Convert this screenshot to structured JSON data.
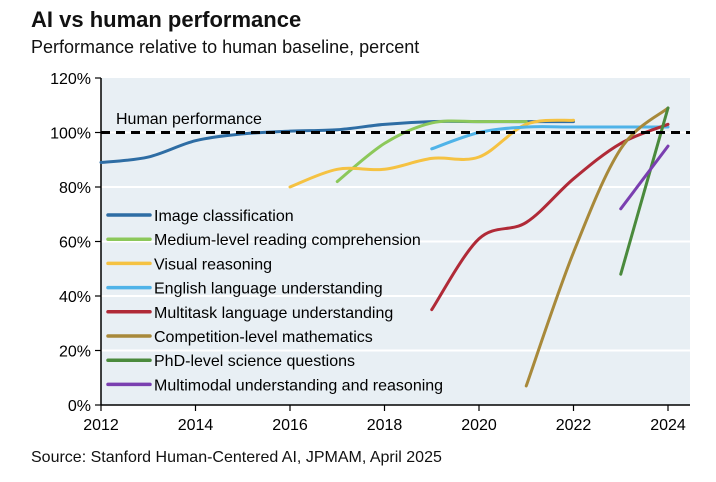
{
  "chart_data": {
    "type": "line",
    "title": "AI vs human performance",
    "subtitle": "Performance relative to human baseline, percent",
    "source": "Source: Stanford Human-Centered AI, JPMAM, April 2025",
    "xlim": [
      2012,
      2024
    ],
    "ylim": [
      0,
      120
    ],
    "x_ticks": [
      "2012",
      "2014",
      "2016",
      "2018",
      "2020",
      "2022",
      "2024"
    ],
    "y_ticks": [
      "0%",
      "20%",
      "40%",
      "60%",
      "80%",
      "100%",
      "120%"
    ],
    "grid": "horizontal",
    "legend_position": "left-center",
    "reference_line": {
      "label": "Human performance",
      "value": 100,
      "color": "#000000"
    },
    "background": "#e8eff4",
    "series": [
      {
        "name": "Image classification",
        "color": "#2e6da4",
        "x": [
          2012,
          2013,
          2014,
          2015,
          2016,
          2017,
          2018,
          2019,
          2020,
          2021,
          2022
        ],
        "values": [
          89,
          91,
          97,
          99.5,
          100.5,
          101,
          103,
          104,
          104,
          104,
          104
        ]
      },
      {
        "name": "Medium-level reading comprehension",
        "color": "#8cc85a",
        "x": [
          2017,
          2018,
          2019,
          2020,
          2021
        ],
        "values": [
          82,
          96,
          103.5,
          104,
          104
        ]
      },
      {
        "name": "Visual reasoning",
        "color": "#f5c242",
        "x": [
          2016,
          2017,
          2018,
          2019,
          2020,
          2021,
          2022
        ],
        "values": [
          80,
          86.5,
          86.5,
          90.5,
          91,
          103,
          104.5
        ]
      },
      {
        "name": "English language understanding",
        "color": "#4fb3e8",
        "x": [
          2019,
          2020,
          2021,
          2022,
          2023,
          2024
        ],
        "values": [
          94,
          100,
          102,
          102,
          102,
          102
        ]
      },
      {
        "name": "Multitask language understanding",
        "color": "#b02a37",
        "x": [
          2019,
          2020,
          2021,
          2022,
          2023,
          2024
        ],
        "values": [
          35,
          61,
          67,
          83,
          96,
          103
        ]
      },
      {
        "name": "Competition-level mathematics",
        "color": "#a8893a",
        "x": [
          2021,
          2022,
          2023,
          2024
        ],
        "values": [
          7,
          56,
          94,
          109
        ]
      },
      {
        "name": "PhD-level science questions",
        "color": "#4a8a3c",
        "x": [
          2023,
          2024
        ],
        "values": [
          48,
          109
        ]
      },
      {
        "name": "Multimodal understanding and reasoning",
        "color": "#7a3fb0",
        "x": [
          2023,
          2024
        ],
        "values": [
          72,
          95
        ]
      }
    ]
  }
}
